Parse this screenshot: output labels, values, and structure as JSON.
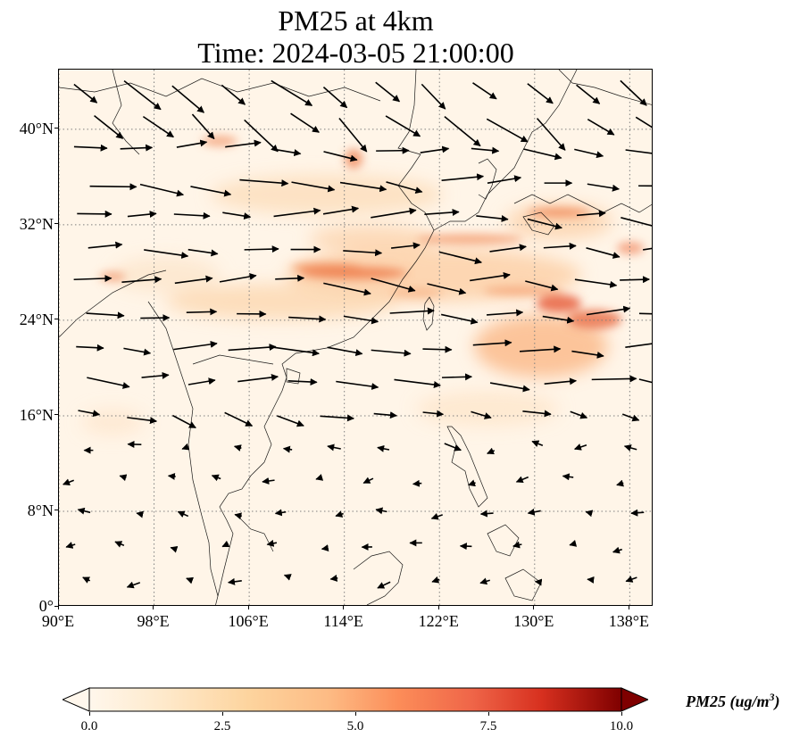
{
  "title": {
    "line1": "PM25 at 4km",
    "line2": "Time: 2024-03-05 21:00:00"
  },
  "axes": {
    "lat_labels": [
      "40°N",
      "32°N",
      "24°N",
      "16°N",
      "8°N",
      "0°"
    ],
    "lat_values": [
      40,
      32,
      24,
      16,
      8,
      0
    ],
    "lon_labels": [
      "90°E",
      "98°E",
      "106°E",
      "114°E",
      "122°E",
      "130°E",
      "138°E"
    ],
    "lon_values": [
      90,
      98,
      106,
      114,
      122,
      130,
      138
    ],
    "lon_range": [
      90,
      140
    ],
    "lat_range": [
      0,
      45
    ],
    "gridlines": "dotted"
  },
  "colorbar": {
    "label": "PM25 (ug/m",
    "label_sup": "3",
    "label_close": ")",
    "ticks": [
      "0.0",
      "2.5",
      "5.0",
      "7.5",
      "10.0"
    ],
    "tick_values": [
      0,
      2.5,
      5.0,
      7.5,
      10.0
    ],
    "range": [
      0,
      10
    ],
    "colormap": "OrRd",
    "extend": "both"
  },
  "colors": {
    "low": "#fff7ec",
    "mid": "#fdbb84",
    "high": "#d7301f",
    "max": "#7f0000",
    "arrows": "#000000",
    "coastline": "#000000",
    "grid": "#7f7f7f"
  }
}
